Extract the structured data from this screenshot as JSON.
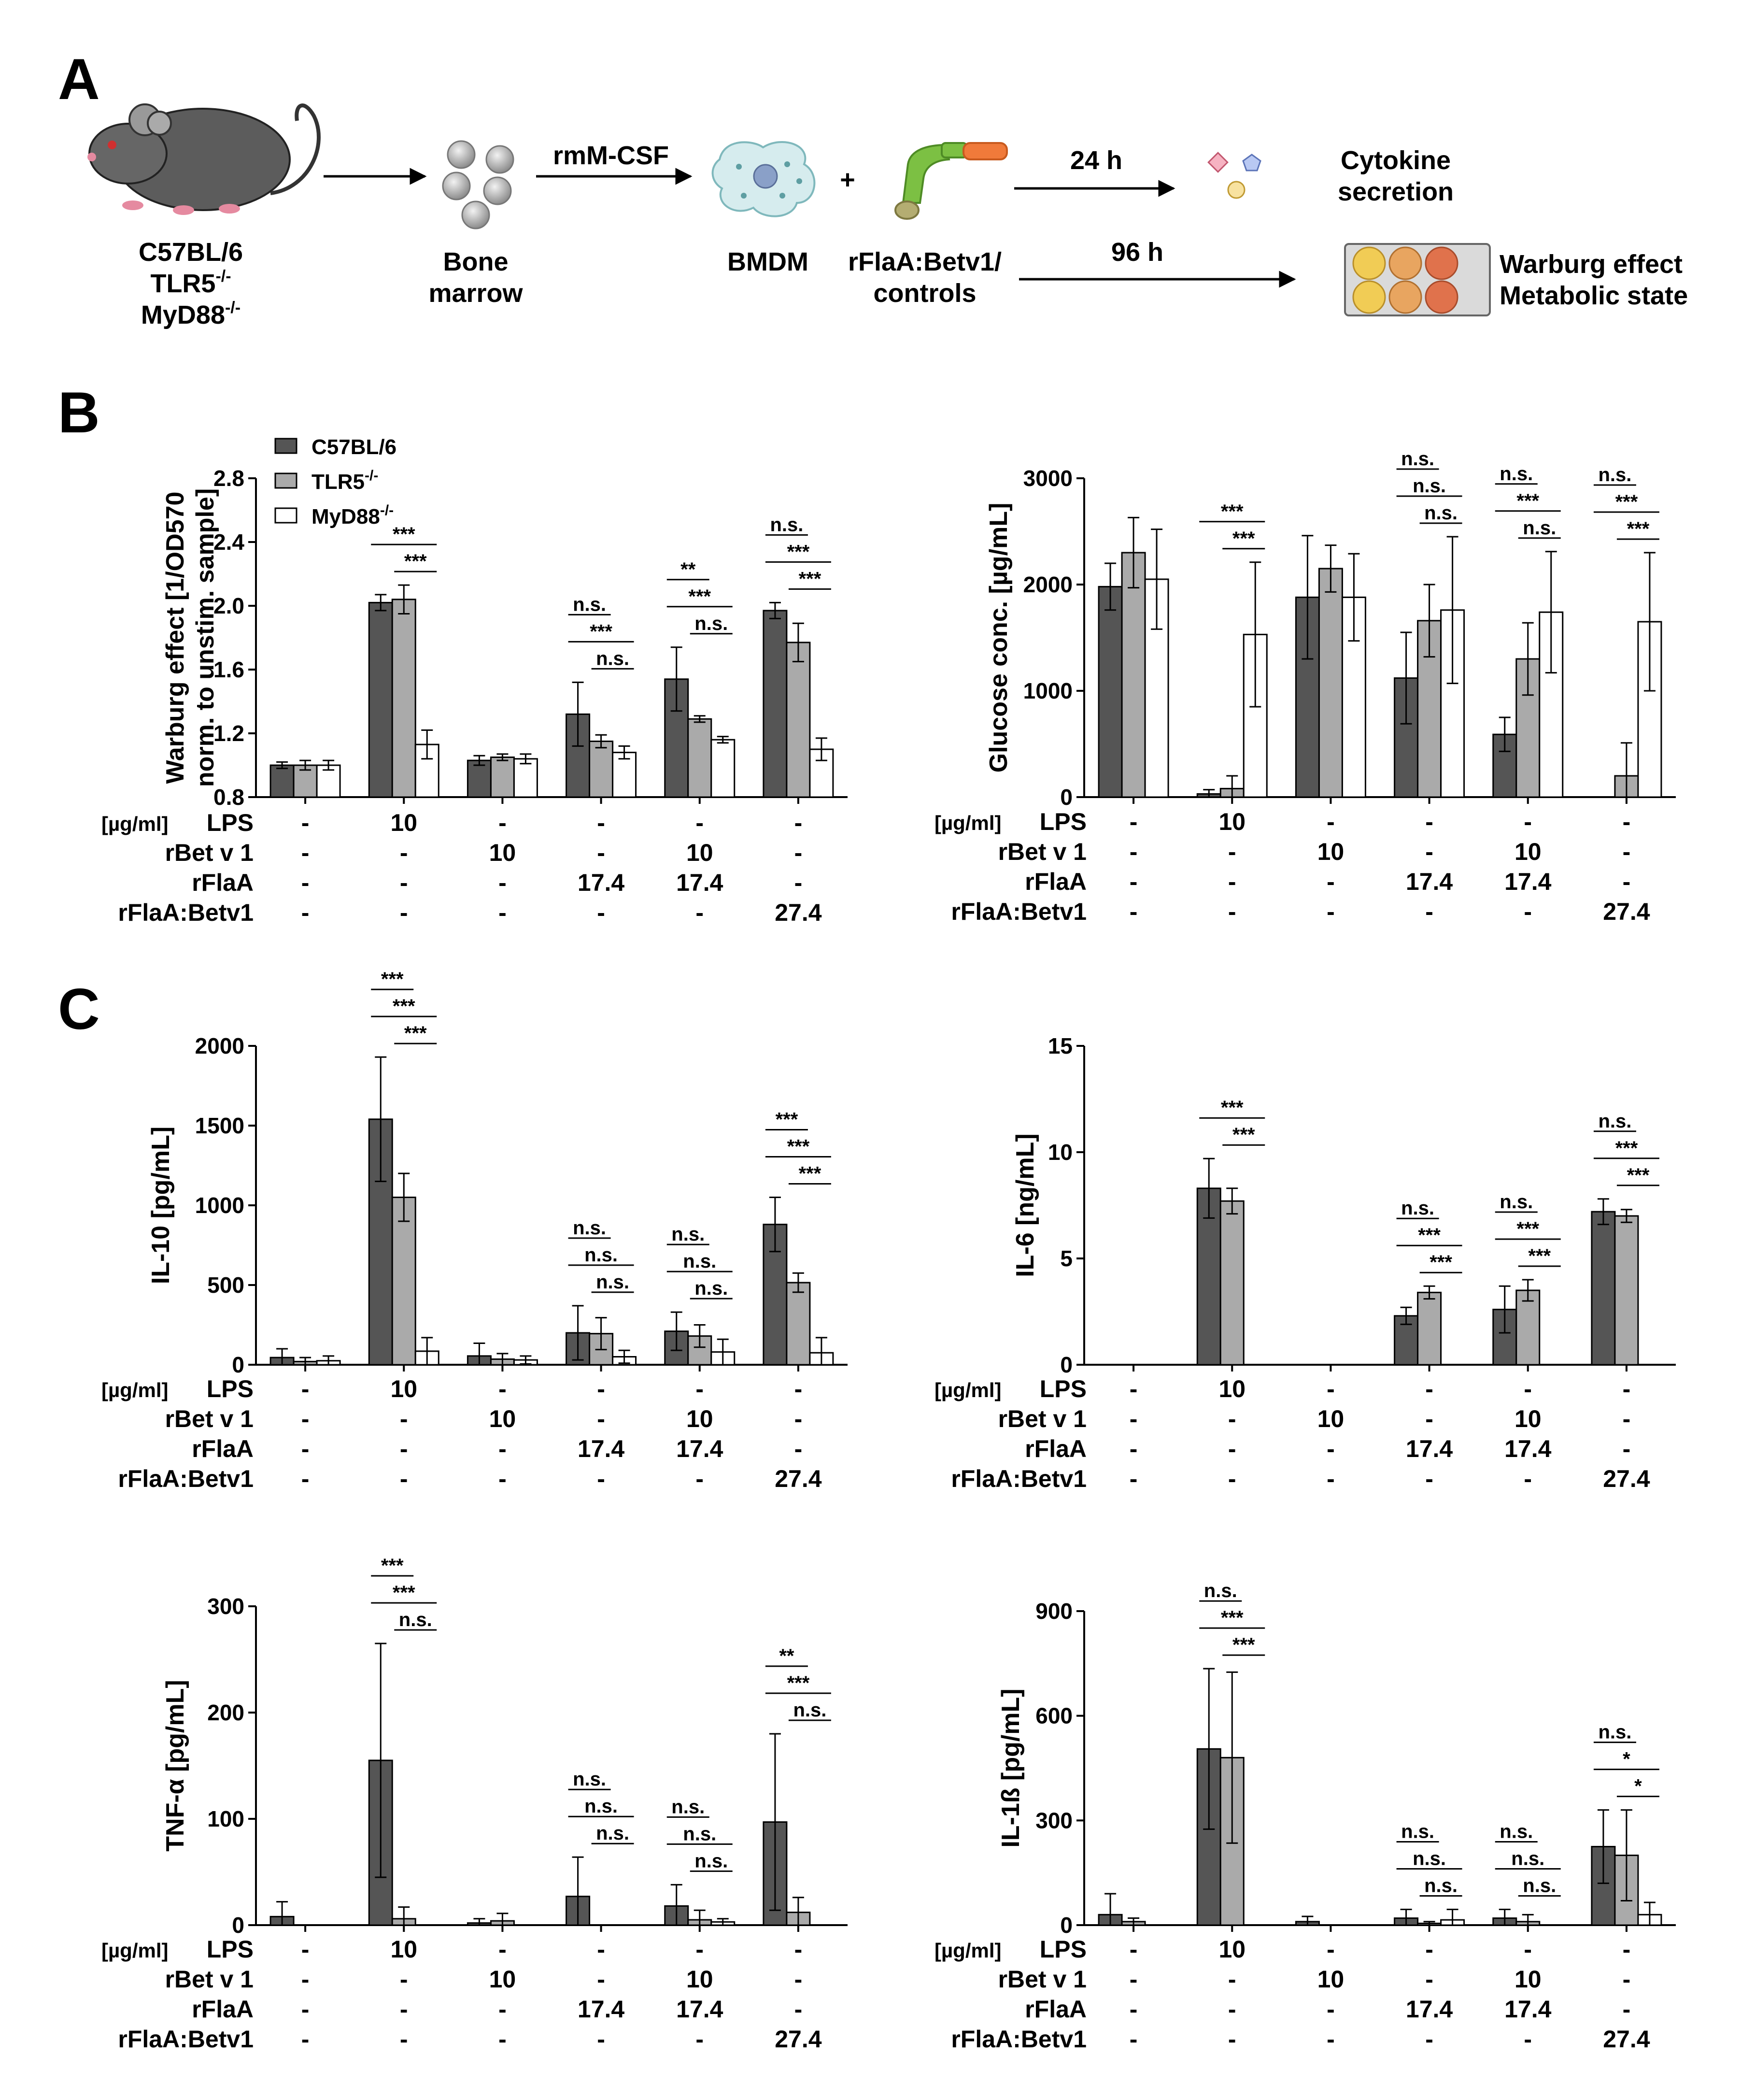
{
  "panel_labels": {
    "a": "A",
    "b": "B",
    "c": "C"
  },
  "workflow": {
    "mouse_lines": [
      "C57BL/6",
      "TLR5",
      "MyD88"
    ],
    "knockout_suffix": "-/-",
    "bone_marrow": [
      "Bone",
      "marrow"
    ],
    "rmmcsf": "rmM-CSF",
    "bmdm": "BMDM",
    "plus": "+",
    "stimulus": [
      "rFlaA:Betv1/",
      "controls"
    ],
    "time_24": "24 h",
    "time_96": "96 h",
    "cytokine": [
      "Cytokine",
      "secretion"
    ],
    "warburg": [
      "Warburg effect",
      "Metabolic state"
    ]
  },
  "colors": {
    "c57": "#555555",
    "tlr5": "#aaaaaa",
    "myd88": "#ffffff",
    "outline": "#000000"
  },
  "legend": [
    {
      "name": "C57BL/6",
      "sup": ""
    },
    {
      "name": "TLR5",
      "sup": "-/-"
    },
    {
      "name": "MyD88",
      "sup": "-/-"
    }
  ],
  "conditions": {
    "unit_label": "[µg/ml]",
    "row_names": [
      "LPS",
      "rBet v 1",
      "rFlaA",
      "rFlaA:Betv1"
    ],
    "rows": [
      [
        "-",
        "10",
        "-",
        "-",
        "-",
        "-"
      ],
      [
        "-",
        "-",
        "10",
        "-",
        "10",
        "-"
      ],
      [
        "-",
        "-",
        "-",
        "17.4",
        "17.4",
        "-"
      ],
      [
        "-",
        "-",
        "-",
        "-",
        "-",
        "27.4"
      ]
    ]
  },
  "chart_data": [
    {
      "id": "warburg",
      "type": "bar",
      "ylabel": [
        "Warburg effect [1/OD570",
        "norm. to unstim. sample]"
      ],
      "ylim": [
        0.8,
        2.8
      ],
      "yticks": [
        "0.8",
        "1.2",
        "1.6",
        "2.0",
        "2.4",
        "2.8"
      ],
      "series": [
        {
          "name": "C57BL/6",
          "values": [
            1.0,
            2.02,
            1.03,
            1.32,
            1.54,
            1.97
          ],
          "errors": [
            0.02,
            0.05,
            0.03,
            0.2,
            0.2,
            0.05
          ]
        },
        {
          "name": "TLR5-/-",
          "values": [
            1.0,
            2.04,
            1.05,
            1.15,
            1.29,
            1.77
          ],
          "errors": [
            0.03,
            0.09,
            0.02,
            0.04,
            0.02,
            0.12
          ]
        },
        {
          "name": "MyD88-/-",
          "values": [
            1.0,
            1.13,
            1.04,
            1.08,
            1.16,
            1.1
          ],
          "errors": [
            0.03,
            0.09,
            0.03,
            0.04,
            0.02,
            0.07
          ]
        }
      ],
      "significance": [
        [],
        [
          {
            "pair": "C57BL/6-MyD88",
            "label": "***"
          },
          {
            "pair": "TLR5-MyD88",
            "label": "***"
          }
        ],
        [],
        [
          {
            "pair": "C57BL/6-TLR5",
            "label": "n.s."
          },
          {
            "pair": "C57BL/6-MyD88",
            "label": "***"
          },
          {
            "pair": "TLR5-MyD88",
            "label": "n.s."
          }
        ],
        [
          {
            "pair": "C57BL/6-TLR5",
            "label": "**"
          },
          {
            "pair": "C57BL/6-MyD88",
            "label": "***"
          },
          {
            "pair": "TLR5-MyD88",
            "label": "n.s."
          }
        ],
        [
          {
            "pair": "C57BL/6-TLR5",
            "label": "n.s."
          },
          {
            "pair": "C57BL/6-MyD88",
            "label": "***"
          },
          {
            "pair": "TLR5-MyD88",
            "label": "***"
          }
        ]
      ]
    },
    {
      "id": "glucose",
      "type": "bar",
      "ylabel": [
        "Glucose conc. [µg/mL]"
      ],
      "ylim": [
        0,
        3000
      ],
      "yticks": [
        "0",
        "1000",
        "2000",
        "3000"
      ],
      "series": [
        {
          "name": "C57BL/6",
          "values": [
            1980,
            30,
            1880,
            1120,
            590,
            0
          ],
          "errors": [
            220,
            40,
            580,
            430,
            160,
            0
          ]
        },
        {
          "name": "TLR5-/-",
          "values": [
            2300,
            80,
            2150,
            1660,
            1300,
            200
          ],
          "errors": [
            330,
            120,
            220,
            340,
            340,
            310
          ]
        },
        {
          "name": "MyD88-/-",
          "values": [
            2050,
            1530,
            1880,
            1760,
            1740,
            1650
          ],
          "errors": [
            470,
            680,
            410,
            690,
            570,
            650
          ]
        }
      ],
      "significance": [
        [],
        [
          {
            "pair": "C57BL/6-MyD88",
            "label": "***"
          },
          {
            "pair": "TLR5-MyD88",
            "label": "***"
          }
        ],
        [],
        [
          {
            "pair": "C57BL/6-TLR5",
            "label": "n.s."
          },
          {
            "pair": "C57BL/6-MyD88",
            "label": "n.s."
          },
          {
            "pair": "TLR5-MyD88",
            "label": "n.s."
          }
        ],
        [
          {
            "pair": "C57BL/6-TLR5",
            "label": "n.s."
          },
          {
            "pair": "C57BL/6-MyD88",
            "label": "***"
          },
          {
            "pair": "TLR5-MyD88",
            "label": "n.s."
          }
        ],
        [
          {
            "pair": "C57BL/6-TLR5",
            "label": "n.s."
          },
          {
            "pair": "C57BL/6-MyD88",
            "label": "***"
          },
          {
            "pair": "TLR5-MyD88",
            "label": "***"
          }
        ]
      ]
    },
    {
      "id": "il10",
      "type": "bar",
      "ylabel": [
        "IL-10 [pg/mL]"
      ],
      "ylim": [
        0,
        2000
      ],
      "yticks": [
        "0",
        "500",
        "1000",
        "1500",
        "2000"
      ],
      "series": [
        {
          "name": "C57BL/6",
          "values": [
            45,
            1540,
            55,
            200,
            210,
            880
          ],
          "errors": [
            55,
            390,
            80,
            170,
            120,
            170
          ]
        },
        {
          "name": "TLR5-/-",
          "values": [
            20,
            1050,
            35,
            195,
            180,
            515
          ],
          "errors": [
            25,
            150,
            35,
            100,
            70,
            60
          ]
        },
        {
          "name": "MyD88-/-",
          "values": [
            25,
            85,
            30,
            50,
            80,
            75
          ],
          "errors": [
            30,
            85,
            25,
            40,
            80,
            95
          ]
        }
      ],
      "significance": [
        [],
        [
          {
            "pair": "C57BL/6-TLR5",
            "label": "***"
          },
          {
            "pair": "C57BL/6-MyD88",
            "label": "***"
          },
          {
            "pair": "TLR5-MyD88",
            "label": "***"
          }
        ],
        [],
        [
          {
            "pair": "C57BL/6-TLR5",
            "label": "n.s."
          },
          {
            "pair": "C57BL/6-MyD88",
            "label": "n.s."
          },
          {
            "pair": "TLR5-MyD88",
            "label": "n.s."
          }
        ],
        [
          {
            "pair": "C57BL/6-TLR5",
            "label": "n.s."
          },
          {
            "pair": "C57BL/6-MyD88",
            "label": "n.s."
          },
          {
            "pair": "TLR5-MyD88",
            "label": "n.s."
          }
        ],
        [
          {
            "pair": "C57BL/6-TLR5",
            "label": "***"
          },
          {
            "pair": "C57BL/6-MyD88",
            "label": "***"
          },
          {
            "pair": "TLR5-MyD88",
            "label": "***"
          }
        ]
      ]
    },
    {
      "id": "il6",
      "type": "bar",
      "ylabel": [
        "IL-6 [ng/mL]"
      ],
      "ylim": [
        0,
        15
      ],
      "yticks": [
        "0",
        "5",
        "10",
        "15"
      ],
      "series": [
        {
          "name": "C57BL/6",
          "values": [
            0,
            8.3,
            0,
            2.3,
            2.6,
            7.2
          ],
          "errors": [
            0,
            1.4,
            0,
            0.4,
            1.1,
            0.6
          ]
        },
        {
          "name": "TLR5-/-",
          "values": [
            0,
            7.7,
            0,
            3.4,
            3.5,
            7.0
          ],
          "errors": [
            0,
            0.6,
            0,
            0.3,
            0.5,
            0.3
          ]
        },
        {
          "name": "MyD88-/-",
          "values": [
            0,
            0,
            0,
            0,
            0,
            0
          ],
          "errors": [
            0,
            0,
            0,
            0,
            0,
            0
          ]
        }
      ],
      "significance": [
        [],
        [
          {
            "pair": "C57BL/6-MyD88",
            "label": "***"
          },
          {
            "pair": "TLR5-MyD88",
            "label": "***"
          }
        ],
        [],
        [
          {
            "pair": "C57BL/6-TLR5",
            "label": "n.s."
          },
          {
            "pair": "C57BL/6-MyD88",
            "label": "***"
          },
          {
            "pair": "TLR5-MyD88",
            "label": "***"
          }
        ],
        [
          {
            "pair": "C57BL/6-TLR5",
            "label": "n.s."
          },
          {
            "pair": "C57BL/6-MyD88",
            "label": "***"
          },
          {
            "pair": "TLR5-MyD88",
            "label": "***"
          }
        ],
        [
          {
            "pair": "C57BL/6-TLR5",
            "label": "n.s."
          },
          {
            "pair": "C57BL/6-MyD88",
            "label": "***"
          },
          {
            "pair": "TLR5-MyD88",
            "label": "***"
          }
        ]
      ]
    },
    {
      "id": "tnfa",
      "type": "bar",
      "ylabel": [
        "TNF-α [pg/mL]"
      ],
      "ylim": [
        0,
        300
      ],
      "yticks": [
        "0",
        "100",
        "200",
        "300"
      ],
      "series": [
        {
          "name": "C57BL/6",
          "values": [
            8,
            155,
            2,
            27,
            18,
            97
          ],
          "errors": [
            14,
            110,
            4,
            37,
            20,
            83
          ]
        },
        {
          "name": "TLR5-/-",
          "values": [
            0,
            6,
            4,
            0,
            5,
            12
          ],
          "errors": [
            0,
            11,
            7,
            0,
            9,
            14
          ]
        },
        {
          "name": "MyD88-/-",
          "values": [
            0,
            0,
            0,
            0,
            3,
            0
          ],
          "errors": [
            0,
            0,
            0,
            0,
            3,
            0
          ]
        }
      ],
      "significance": [
        [],
        [
          {
            "pair": "C57BL/6-TLR5",
            "label": "***"
          },
          {
            "pair": "C57BL/6-MyD88",
            "label": "***"
          },
          {
            "pair": "TLR5-MyD88",
            "label": "n.s."
          }
        ],
        [],
        [
          {
            "pair": "C57BL/6-TLR5",
            "label": "n.s."
          },
          {
            "pair": "C57BL/6-MyD88",
            "label": "n.s."
          },
          {
            "pair": "TLR5-MyD88",
            "label": "n.s."
          }
        ],
        [
          {
            "pair": "C57BL/6-TLR5",
            "label": "n.s."
          },
          {
            "pair": "C57BL/6-MyD88",
            "label": "n.s."
          },
          {
            "pair": "TLR5-MyD88",
            "label": "n.s."
          }
        ],
        [
          {
            "pair": "C57BL/6-TLR5",
            "label": "**"
          },
          {
            "pair": "C57BL/6-MyD88",
            "label": "***"
          },
          {
            "pair": "TLR5-MyD88",
            "label": "n.s."
          }
        ]
      ]
    },
    {
      "id": "il1b",
      "type": "bar",
      "ylabel": [
        "IL-1ß [pg/mL]"
      ],
      "ylim": [
        0,
        900
      ],
      "yticks": [
        "0",
        "300",
        "600",
        "900"
      ],
      "series": [
        {
          "name": "C57BL/6",
          "values": [
            30,
            505,
            10,
            20,
            20,
            225
          ],
          "errors": [
            60,
            230,
            15,
            25,
            25,
            105
          ]
        },
        {
          "name": "TLR5-/-",
          "values": [
            10,
            480,
            0,
            5,
            10,
            200
          ],
          "errors": [
            10,
            245,
            0,
            5,
            20,
            130
          ]
        },
        {
          "name": "MyD88-/-",
          "values": [
            0,
            0,
            0,
            15,
            0,
            30
          ],
          "errors": [
            0,
            0,
            0,
            30,
            0,
            35
          ]
        }
      ],
      "significance": [
        [],
        [
          {
            "pair": "C57BL/6-TLR5",
            "label": "n.s."
          },
          {
            "pair": "C57BL/6-MyD88",
            "label": "***"
          },
          {
            "pair": "TLR5-MyD88",
            "label": "***"
          }
        ],
        [],
        [
          {
            "pair": "C57BL/6-TLR5",
            "label": "n.s."
          },
          {
            "pair": "C57BL/6-MyD88",
            "label": "n.s."
          },
          {
            "pair": "TLR5-MyD88",
            "label": "n.s."
          }
        ],
        [
          {
            "pair": "C57BL/6-TLR5",
            "label": "n.s."
          },
          {
            "pair": "C57BL/6-MyD88",
            "label": "n.s."
          },
          {
            "pair": "TLR5-MyD88",
            "label": "n.s."
          }
        ],
        [
          {
            "pair": "C57BL/6-TLR5",
            "label": "n.s."
          },
          {
            "pair": "C57BL/6-MyD88",
            "label": "*"
          },
          {
            "pair": "TLR5-MyD88",
            "label": "*"
          }
        ]
      ]
    }
  ]
}
